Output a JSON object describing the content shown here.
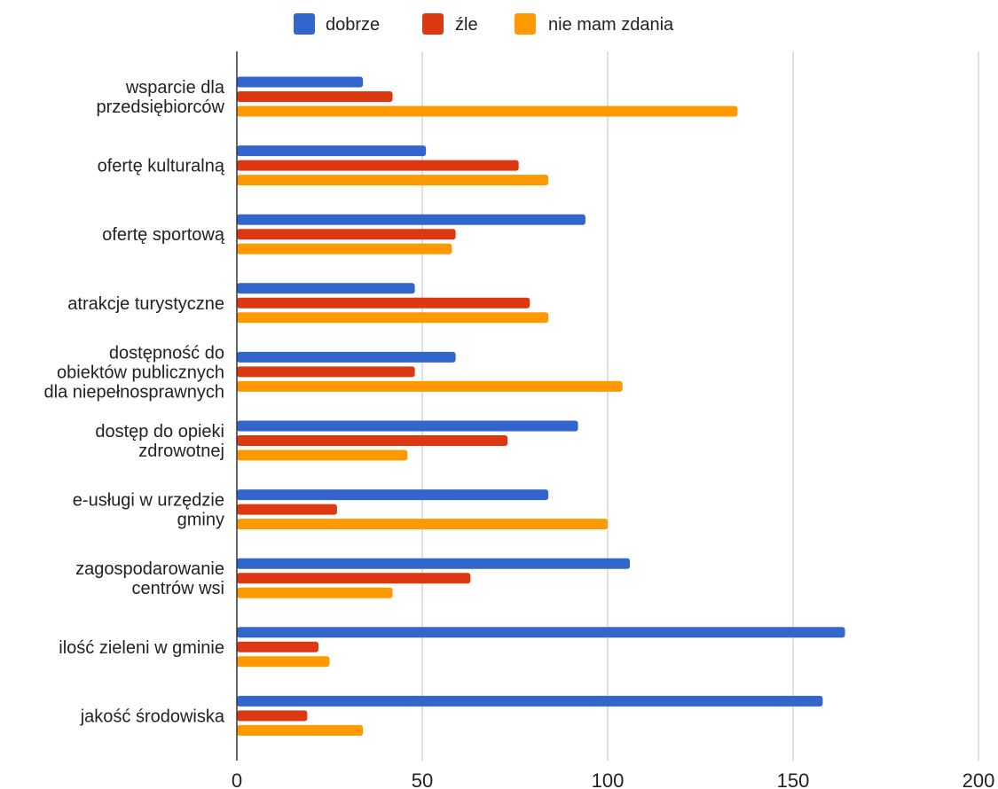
{
  "chart_data": {
    "type": "bar",
    "orientation": "horizontal",
    "title": "",
    "xlabel": "",
    "ylabel": "",
    "xlim": [
      0,
      200
    ],
    "xticks": [
      0,
      50,
      100,
      150,
      200
    ],
    "xtick_labels": [
      "0",
      "50",
      "100",
      "150",
      "200"
    ],
    "grid": true,
    "legend_position": "top-center",
    "categories": [
      [
        "wsparcie dla",
        "przedsiębiorców"
      ],
      [
        "ofertę kulturalną"
      ],
      [
        "ofertę sportową"
      ],
      [
        "atrakcje turystyczne"
      ],
      [
        "dostępność do",
        "obiektów publicznych",
        "dla niepełnosprawnych"
      ],
      [
        "dostęp do opieki",
        "zdrowotnej"
      ],
      [
        "e-usługi w urzędzie",
        "gminy"
      ],
      [
        "zagospodarowanie",
        "centrów wsi"
      ],
      [
        "ilość zieleni w gminie"
      ],
      [
        "jakość środowiska"
      ]
    ],
    "series": [
      {
        "name": "dobrze",
        "color": "#3366cc",
        "values": [
          34,
          51,
          94,
          48,
          59,
          92,
          84,
          106,
          164,
          158
        ]
      },
      {
        "name": "źle",
        "color": "#dc3912",
        "values": [
          42,
          76,
          59,
          79,
          48,
          73,
          27,
          63,
          22,
          19
        ]
      },
      {
        "name": "nie mam zdania",
        "color": "#ff9900",
        "values": [
          135,
          84,
          58,
          84,
          104,
          46,
          100,
          42,
          25,
          34
        ]
      }
    ]
  }
}
